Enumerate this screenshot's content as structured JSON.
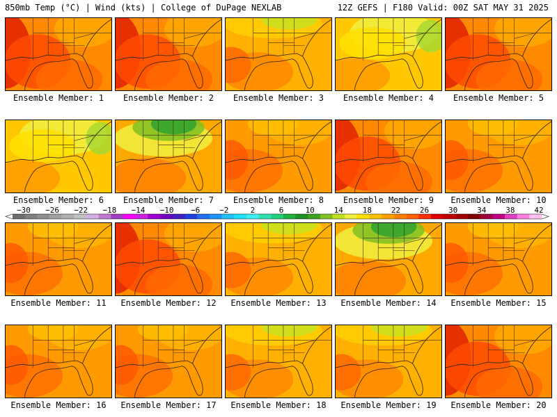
{
  "header": {
    "left": "850mb Temp (°C) | Wind (kts) | College of DuPage NEXLAB",
    "right": "12Z GEFS | F180 Valid: 00Z SAT MAY 31 2025"
  },
  "panels": [
    {
      "label": "Ensemble Member: 1",
      "scheme": "hot"
    },
    {
      "label": "Ensemble Member: 2",
      "scheme": "hot"
    },
    {
      "label": "Ensemble Member: 3",
      "scheme": "warm-yellow"
    },
    {
      "label": "Ensemble Member: 4",
      "scheme": "yellow"
    },
    {
      "label": "Ensemble Member: 5",
      "scheme": "hot"
    },
    {
      "label": "Ensemble Member: 6",
      "scheme": "yellow"
    },
    {
      "label": "Ensemble Member: 7",
      "scheme": "green-north"
    },
    {
      "label": "Ensemble Member: 8",
      "scheme": "orange"
    },
    {
      "label": "Ensemble Member: 9",
      "scheme": "hot"
    },
    {
      "label": "Ensemble Member: 10",
      "scheme": "orange"
    },
    {
      "label": "Ensemble Member: 11",
      "scheme": "orange"
    },
    {
      "label": "Ensemble Member: 12",
      "scheme": "hot"
    },
    {
      "label": "Ensemble Member: 13",
      "scheme": "warm-yellow"
    },
    {
      "label": "Ensemble Member: 14",
      "scheme": "green-north"
    },
    {
      "label": "Ensemble Member: 15",
      "scheme": "orange"
    },
    {
      "label": "Ensemble Member: 16",
      "scheme": "orange"
    },
    {
      "label": "Ensemble Member: 17",
      "scheme": "orange"
    },
    {
      "label": "Ensemble Member: 18",
      "scheme": "warm-yellow"
    },
    {
      "label": "Ensemble Member: 19",
      "scheme": "warm-yellow"
    },
    {
      "label": "Ensemble Member: 20",
      "scheme": "hot"
    }
  ],
  "colorbar": {
    "ticks": [
      "-30",
      "-26",
      "-22",
      "-18",
      "-14",
      "-10",
      "-6",
      "-2",
      "2",
      "6",
      "10",
      "14",
      "18",
      "22",
      "26",
      "30",
      "34",
      "38",
      "42"
    ],
    "colors": [
      "#6e6e6e",
      "#7f7f7f",
      "#8f8f8f",
      "#a0a0a0",
      "#b0b0b0",
      "#c2c2c2",
      "#d0b0e0",
      "#c07ad0",
      "#a040c0",
      "#ff00ff",
      "#d020e0",
      "#a000d0",
      "#7000c0",
      "#4020c0",
      "#2040e0",
      "#2070f0",
      "#2090ff",
      "#20c0ff",
      "#20e0ff",
      "#40f0f0",
      "#30e0b0",
      "#20d080",
      "#20b040",
      "#209020",
      "#40a020",
      "#80c020",
      "#c0e020",
      "#f0f040",
      "#ffe000",
      "#ffc000",
      "#ffa000",
      "#ff8000",
      "#ff6000",
      "#ff3000",
      "#e00000",
      "#c00000",
      "#a00000",
      "#800000",
      "#a00040",
      "#c00080",
      "#e040c0",
      "#ff80e0",
      "#ffc0f0"
    ]
  }
}
